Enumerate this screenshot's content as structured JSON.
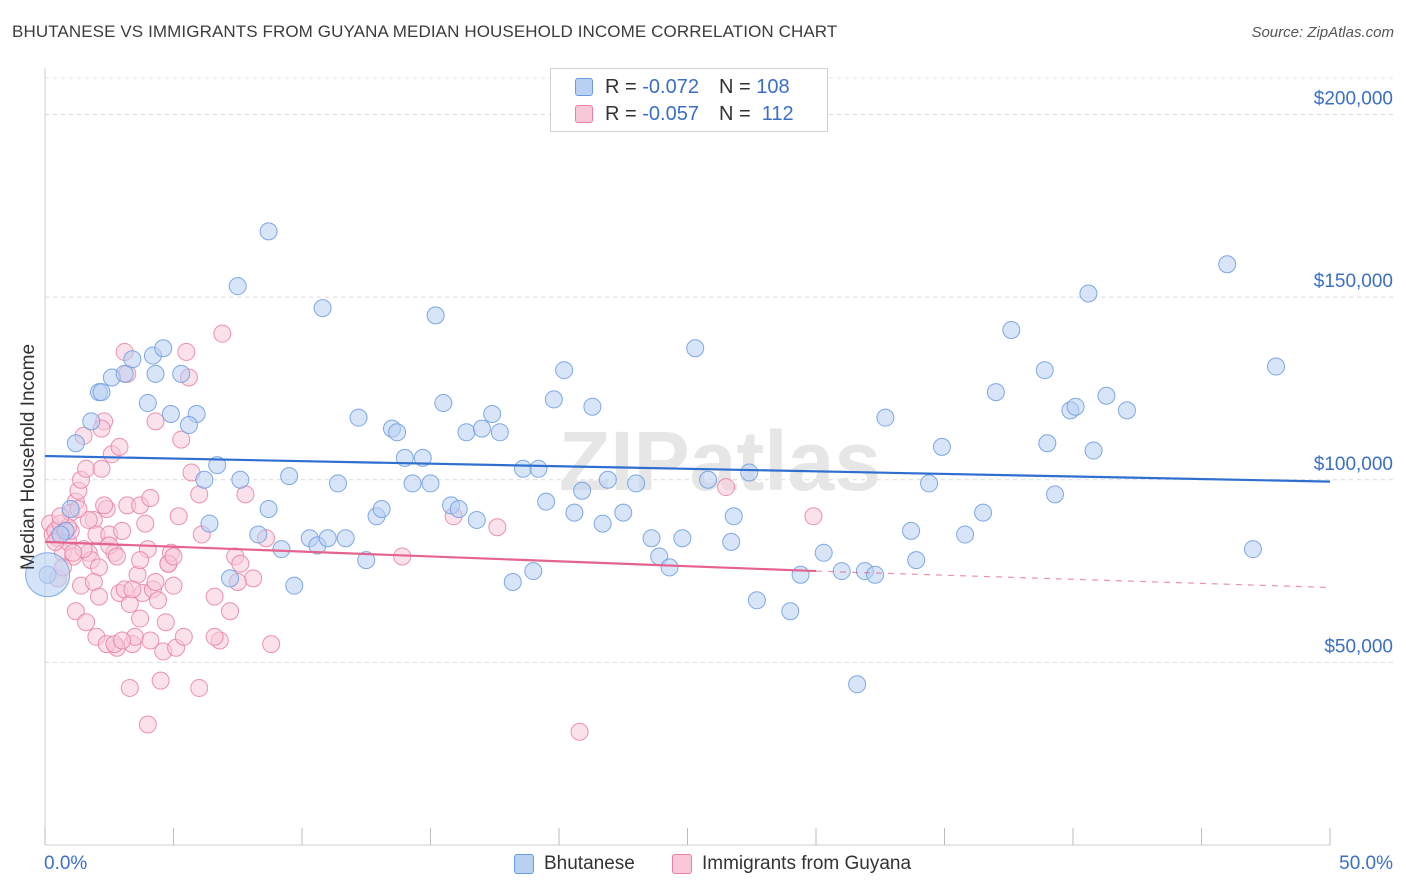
{
  "title": "BHUTANESE VS IMMIGRANTS FROM GUYANA MEDIAN HOUSEHOLD INCOME CORRELATION CHART",
  "source": "Source: ZipAtlas.com",
  "watermark": "ZIPatlas",
  "legend": {
    "rows": [
      {
        "r_label": "R =",
        "r_value": "-0.072",
        "n_label": "N =",
        "n_value": "108",
        "color": "#6a9be0",
        "fill": "#b8d0f2"
      },
      {
        "r_label": "R =",
        "r_value": "-0.057",
        "n_label": "N =",
        "n_value": "112",
        "color": "#e97fa3",
        "fill": "#f8c8d8"
      }
    ]
  },
  "bottom_legend": {
    "items": [
      {
        "label": "Bhutanese",
        "color": "#6a9be0",
        "fill": "#b8d0f2"
      },
      {
        "label": "Immigrants from Guyana",
        "color": "#e97fa3",
        "fill": "#f8c8d8"
      }
    ]
  },
  "chart_data": {
    "type": "scatter",
    "title": "BHUTANESE VS IMMIGRANTS FROM GUYANA MEDIAN HOUSEHOLD INCOME CORRELATION CHART",
    "xlabel": "",
    "ylabel": "Median Household Income",
    "xlim": [
      0,
      50
    ],
    "ylim": [
      0,
      210000
    ],
    "x_tick_labels": [
      "0.0%",
      "50.0%"
    ],
    "y_ticks": [
      50000,
      100000,
      150000,
      200000
    ],
    "y_tick_labels": [
      "$50,000",
      "$100,000",
      "$150,000",
      "$200,000"
    ],
    "grid": "horizontal dashed",
    "legend_position": "top-center",
    "series": [
      {
        "name": "Bhutanese",
        "color": "#6a9be0",
        "fill": "#b8d0f2",
        "trend": {
          "x": [
            0,
            50
          ],
          "y": [
            106500,
            99500
          ]
        },
        "points": [
          [
            0.1,
            74000
          ],
          [
            0.8,
            86000
          ],
          [
            1.0,
            92000
          ],
          [
            0.6,
            85000
          ],
          [
            1.2,
            110000
          ],
          [
            1.8,
            116000
          ],
          [
            2.1,
            124000
          ],
          [
            2.2,
            124000
          ],
          [
            2.6,
            128000
          ],
          [
            3.1,
            129000
          ],
          [
            3.4,
            133000
          ],
          [
            4.2,
            134000
          ],
          [
            4.6,
            136000
          ],
          [
            5.3,
            129000
          ],
          [
            4.0,
            121000
          ],
          [
            4.9,
            118000
          ],
          [
            5.9,
            118000
          ],
          [
            5.6,
            115000
          ],
          [
            6.2,
            100000
          ],
          [
            6.4,
            88000
          ],
          [
            6.7,
            104000
          ],
          [
            7.2,
            73000
          ],
          [
            7.6,
            100000
          ],
          [
            8.3,
            85000
          ],
          [
            8.7,
            92000
          ],
          [
            9.2,
            81000
          ],
          [
            9.5,
            101000
          ],
          [
            9.7,
            71000
          ],
          [
            10.3,
            84000
          ],
          [
            10.6,
            82000
          ],
          [
            11.0,
            84000
          ],
          [
            11.4,
            99000
          ],
          [
            11.7,
            84000
          ],
          [
            12.2,
            117000
          ],
          [
            12.5,
            78000
          ],
          [
            12.9,
            90000
          ],
          [
            13.1,
            92000
          ],
          [
            13.5,
            114000
          ],
          [
            13.7,
            113000
          ],
          [
            14.0,
            106000
          ],
          [
            14.3,
            99000
          ],
          [
            14.7,
            106000
          ],
          [
            15.0,
            99000
          ],
          [
            15.5,
            121000
          ],
          [
            15.8,
            93000
          ],
          [
            16.1,
            92000
          ],
          [
            16.4,
            113000
          ],
          [
            16.8,
            89000
          ],
          [
            17.0,
            114000
          ],
          [
            17.4,
            118000
          ],
          [
            17.7,
            113000
          ],
          [
            18.2,
            72000
          ],
          [
            18.6,
            103000
          ],
          [
            19.0,
            75000
          ],
          [
            19.2,
            103000
          ],
          [
            19.5,
            94000
          ],
          [
            19.8,
            122000
          ],
          [
            20.2,
            130000
          ],
          [
            20.6,
            91000
          ],
          [
            20.9,
            97000
          ],
          [
            21.3,
            120000
          ],
          [
            21.7,
            88000
          ],
          [
            21.9,
            100000
          ],
          [
            22.5,
            91000
          ],
          [
            23.0,
            99000
          ],
          [
            23.6,
            84000
          ],
          [
            23.9,
            79000
          ],
          [
            24.3,
            76000
          ],
          [
            24.8,
            84000
          ],
          [
            25.3,
            136000
          ],
          [
            25.8,
            100000
          ],
          [
            26.7,
            83000
          ],
          [
            26.8,
            90000
          ],
          [
            27.4,
            102000
          ],
          [
            27.7,
            67000
          ],
          [
            29.0,
            64000
          ],
          [
            29.4,
            74000
          ],
          [
            30.3,
            80000
          ],
          [
            31.0,
            75000
          ],
          [
            31.6,
            44000
          ],
          [
            31.9,
            75000
          ],
          [
            32.3,
            74000
          ],
          [
            32.7,
            117000
          ],
          [
            33.7,
            86000
          ],
          [
            33.9,
            78000
          ],
          [
            34.4,
            99000
          ],
          [
            34.9,
            109000
          ],
          [
            35.8,
            85000
          ],
          [
            36.5,
            91000
          ],
          [
            37.0,
            124000
          ],
          [
            37.6,
            141000
          ],
          [
            38.9,
            130000
          ],
          [
            39.0,
            110000
          ],
          [
            39.9,
            119000
          ],
          [
            40.1,
            120000
          ],
          [
            40.6,
            151000
          ],
          [
            40.8,
            108000
          ],
          [
            41.3,
            123000
          ],
          [
            42.1,
            119000
          ],
          [
            39.3,
            96000
          ],
          [
            46.0,
            159000
          ],
          [
            47.0,
            81000
          ],
          [
            47.9,
            131000
          ],
          [
            8.7,
            168000
          ],
          [
            7.5,
            153000
          ],
          [
            10.8,
            147000
          ],
          [
            15.2,
            145000
          ],
          [
            4.3,
            129000
          ]
        ]
      },
      {
        "name": "Immigrants from Guyana",
        "color": "#e97fa3",
        "fill": "#f8c8d8",
        "trend": {
          "x": [
            0,
            30
          ],
          "y": [
            83000,
            75000
          ]
        },
        "trend_dashed": {
          "x": [
            30,
            50
          ],
          "y": [
            75000,
            70500
          ]
        },
        "points": [
          [
            0.2,
            88000
          ],
          [
            0.3,
            85000
          ],
          [
            0.4,
            86000
          ],
          [
            0.5,
            84000
          ],
          [
            0.6,
            88000
          ],
          [
            0.7,
            80000
          ],
          [
            0.8,
            86000
          ],
          [
            0.9,
            83000
          ],
          [
            1.0,
            86000
          ],
          [
            1.1,
            79000
          ],
          [
            1.2,
            94000
          ],
          [
            1.3,
            97000
          ],
          [
            1.4,
            100000
          ],
          [
            1.5,
            112000
          ],
          [
            1.6,
            103000
          ],
          [
            1.7,
            80000
          ],
          [
            1.8,
            78000
          ],
          [
            1.9,
            89000
          ],
          [
            2.0,
            85000
          ],
          [
            2.1,
            76000
          ],
          [
            2.2,
            103000
          ],
          [
            2.3,
            116000
          ],
          [
            2.4,
            92000
          ],
          [
            2.5,
            85000
          ],
          [
            2.6,
            107000
          ],
          [
            2.7,
            80000
          ],
          [
            2.8,
            54000
          ],
          [
            2.9,
            69000
          ],
          [
            3.0,
            86000
          ],
          [
            3.1,
            70000
          ],
          [
            3.2,
            93000
          ],
          [
            3.3,
            66000
          ],
          [
            3.4,
            55000
          ],
          [
            3.5,
            57000
          ],
          [
            3.6,
            74000
          ],
          [
            3.7,
            93000
          ],
          [
            3.8,
            69000
          ],
          [
            3.9,
            88000
          ],
          [
            4.0,
            81000
          ],
          [
            4.1,
            95000
          ],
          [
            4.2,
            70000
          ],
          [
            4.3,
            116000
          ],
          [
            4.4,
            67000
          ],
          [
            4.5,
            45000
          ],
          [
            4.6,
            53000
          ],
          [
            4.7,
            61000
          ],
          [
            4.8,
            77000
          ],
          [
            4.9,
            80000
          ],
          [
            5.0,
            71000
          ],
          [
            5.1,
            54000
          ],
          [
            5.2,
            90000
          ],
          [
            5.3,
            111000
          ],
          [
            5.4,
            57000
          ],
          [
            5.5,
            135000
          ],
          [
            5.6,
            128000
          ],
          [
            5.7,
            102000
          ],
          [
            6.1,
            85000
          ],
          [
            6.6,
            68000
          ],
          [
            6.8,
            56000
          ],
          [
            6.9,
            140000
          ],
          [
            7.2,
            64000
          ],
          [
            7.4,
            79000
          ],
          [
            7.6,
            77000
          ],
          [
            7.8,
            96000
          ],
          [
            8.1,
            73000
          ],
          [
            8.6,
            84000
          ],
          [
            8.8,
            55000
          ],
          [
            2.9,
            109000
          ],
          [
            3.2,
            129000
          ],
          [
            3.1,
            135000
          ],
          [
            2.2,
            114000
          ],
          [
            1.2,
            64000
          ],
          [
            1.6,
            61000
          ],
          [
            2.0,
            57000
          ],
          [
            2.4,
            55000
          ],
          [
            2.7,
            55000
          ],
          [
            3.0,
            56000
          ],
          [
            1.4,
            71000
          ],
          [
            1.9,
            72000
          ],
          [
            3.4,
            70000
          ],
          [
            4.1,
            56000
          ],
          [
            4.8,
            77000
          ],
          [
            2.5,
            82000
          ],
          [
            1.7,
            89000
          ],
          [
            1.0,
            91000
          ],
          [
            0.9,
            87000
          ],
          [
            1.3,
            92000
          ],
          [
            2.3,
            93000
          ],
          [
            3.7,
            78000
          ],
          [
            4.3,
            72000
          ],
          [
            5.0,
            79000
          ],
          [
            6.0,
            96000
          ],
          [
            6.6,
            57000
          ],
          [
            0.5,
            73000
          ],
          [
            0.7,
            76000
          ],
          [
            1.5,
            81000
          ],
          [
            2.8,
            79000
          ],
          [
            3.3,
            43000
          ],
          [
            4.0,
            33000
          ],
          [
            6.0,
            43000
          ],
          [
            7.5,
            72000
          ],
          [
            13.9,
            79000
          ],
          [
            15.9,
            90000
          ],
          [
            17.6,
            87000
          ],
          [
            20.8,
            31000
          ],
          [
            26.5,
            98000
          ],
          [
            29.9,
            90000
          ],
          [
            0.4,
            83000
          ],
          [
            0.6,
            90000
          ],
          [
            1.1,
            80000
          ],
          [
            2.1,
            68000
          ],
          [
            3.7,
            62000
          ]
        ]
      }
    ]
  }
}
